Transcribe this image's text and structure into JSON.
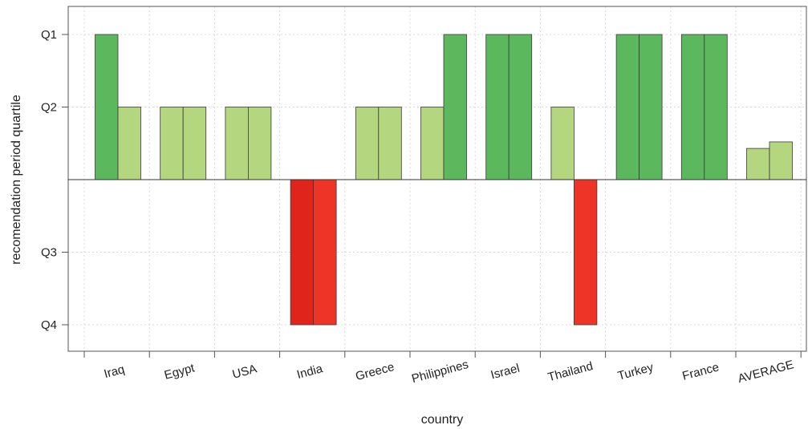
{
  "chart_data": {
    "type": "bar",
    "xlabel": "country",
    "ylabel": "recomendation period quartile",
    "y_ticks": [
      {
        "label": "Q1",
        "value": 2
      },
      {
        "label": "Q2",
        "value": 1
      },
      {
        "label": "Q3",
        "value": -1
      },
      {
        "label": "Q4",
        "value": -2
      }
    ],
    "ylim": [
      -2.4,
      2.4
    ],
    "grid": true,
    "legend": "none",
    "categories": [
      "Iraq",
      "Egypt",
      "USA",
      "India",
      "Greece",
      "Philippines",
      "Israel",
      "Thailand",
      "Turkey",
      "France",
      "AVERAGE"
    ],
    "series": [
      {
        "values": [
          2,
          1,
          1,
          -2,
          1,
          1,
          2,
          1,
          2,
          2,
          0.43
        ]
      },
      {
        "values": [
          1,
          1,
          1,
          -2,
          1,
          2,
          2,
          -2,
          2,
          2,
          0.52
        ]
      }
    ],
    "colors": {
      "q1_green": "#5cb85c",
      "q2_lightgreen": "#b3d67e",
      "q4_red_dark": "#e0231b",
      "q4_red": "#ee3426",
      "average_bar": "#b3d67e"
    }
  }
}
